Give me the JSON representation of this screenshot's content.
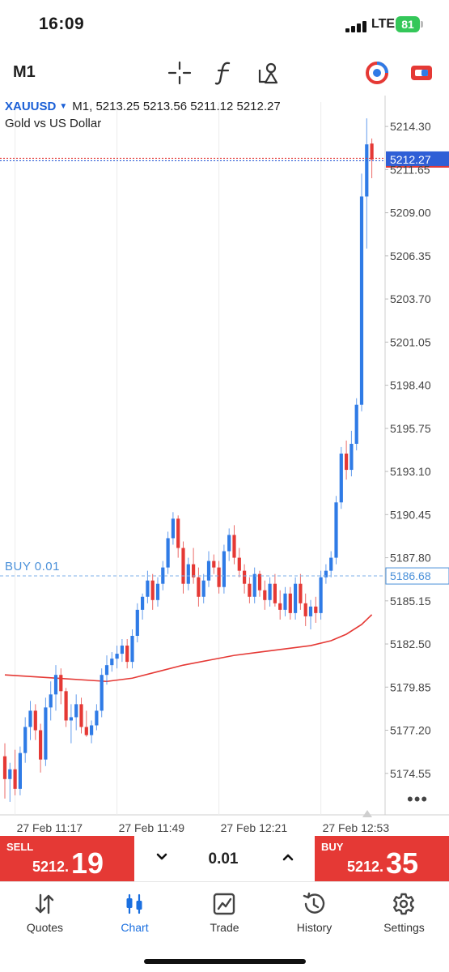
{
  "status_bar": {
    "time": "16:09",
    "network": "LTE",
    "battery": "81"
  },
  "toolbar": {
    "timeframe": "M1",
    "icons": [
      "crosshair-icon",
      "indicators-f-icon",
      "objects-icon",
      "trading-account-icon",
      "one-click-trading-icon"
    ]
  },
  "chart_header": {
    "symbol": "XAUUSD",
    "timeframe": "M1",
    "ohlc": "5213.25 5213.56 5211.12 5212.27",
    "description": "Gold vs US Dollar"
  },
  "chart_data": {
    "type": "candlestick",
    "y_ticks": [
      "5214.30",
      "5211.65",
      "5209.00",
      "5206.35",
      "5203.70",
      "5201.05",
      "5198.40",
      "5195.75",
      "5193.10",
      "5190.45",
      "5187.80",
      "5185.15",
      "5182.50",
      "5179.85",
      "5177.20",
      "5174.55"
    ],
    "ylim": [
      5172.0,
      5215.8
    ],
    "x_ticks": [
      "27 Feb 11:17",
      "27 Feb 11:49",
      "27 Feb 12:21",
      "27 Feb 12:53"
    ],
    "current_bid": "5212.27",
    "order_line": {
      "label": "BUY 0.01",
      "price": "5186.68"
    },
    "up_color": "#2f7be6",
    "down_color": "#e53935",
    "moving_average_color": "#e53935",
    "candles": [
      {
        "o": 5175.6,
        "h": 5176.4,
        "l": 5173.0,
        "c": 5174.2
      },
      {
        "o": 5174.2,
        "h": 5175.2,
        "l": 5172.8,
        "c": 5174.8
      },
      {
        "o": 5174.8,
        "h": 5176.0,
        "l": 5173.2,
        "c": 5173.6
      },
      {
        "o": 5173.6,
        "h": 5176.2,
        "l": 5173.2,
        "c": 5175.8
      },
      {
        "o": 5175.8,
        "h": 5178.0,
        "l": 5175.2,
        "c": 5177.4
      },
      {
        "o": 5177.4,
        "h": 5179.0,
        "l": 5176.6,
        "c": 5178.4
      },
      {
        "o": 5178.4,
        "h": 5178.8,
        "l": 5176.6,
        "c": 5177.2
      },
      {
        "o": 5177.2,
        "h": 5177.6,
        "l": 5174.6,
        "c": 5175.4
      },
      {
        "o": 5175.4,
        "h": 5179.2,
        "l": 5175.0,
        "c": 5178.6
      },
      {
        "o": 5178.6,
        "h": 5180.2,
        "l": 5177.8,
        "c": 5179.4
      },
      {
        "o": 5179.4,
        "h": 5181.2,
        "l": 5178.4,
        "c": 5180.6
      },
      {
        "o": 5180.6,
        "h": 5181.0,
        "l": 5178.8,
        "c": 5179.6
      },
      {
        "o": 5179.6,
        "h": 5179.8,
        "l": 5177.4,
        "c": 5177.8
      },
      {
        "o": 5177.8,
        "h": 5178.8,
        "l": 5176.4,
        "c": 5178.0
      },
      {
        "o": 5178.0,
        "h": 5179.4,
        "l": 5177.2,
        "c": 5178.8
      },
      {
        "o": 5178.8,
        "h": 5179.2,
        "l": 5177.0,
        "c": 5177.4
      },
      {
        "o": 5177.4,
        "h": 5178.4,
        "l": 5176.8,
        "c": 5176.9
      },
      {
        "o": 5176.9,
        "h": 5177.8,
        "l": 5176.4,
        "c": 5177.5
      },
      {
        "o": 5177.5,
        "h": 5178.8,
        "l": 5177.2,
        "c": 5178.4
      },
      {
        "o": 5178.4,
        "h": 5181.0,
        "l": 5178.0,
        "c": 5180.6
      },
      {
        "o": 5180.6,
        "h": 5181.8,
        "l": 5180.0,
        "c": 5181.2
      },
      {
        "o": 5181.2,
        "h": 5182.0,
        "l": 5180.8,
        "c": 5181.6
      },
      {
        "o": 5181.6,
        "h": 5182.4,
        "l": 5181.0,
        "c": 5181.9
      },
      {
        "o": 5181.9,
        "h": 5182.8,
        "l": 5181.4,
        "c": 5182.4
      },
      {
        "o": 5182.4,
        "h": 5182.8,
        "l": 5181.0,
        "c": 5181.4
      },
      {
        "o": 5181.4,
        "h": 5183.4,
        "l": 5181.0,
        "c": 5183.0
      },
      {
        "o": 5183.0,
        "h": 5185.0,
        "l": 5182.6,
        "c": 5184.6
      },
      {
        "o": 5184.6,
        "h": 5185.6,
        "l": 5184.0,
        "c": 5185.4
      },
      {
        "o": 5185.4,
        "h": 5187.0,
        "l": 5185.0,
        "c": 5186.4
      },
      {
        "o": 5186.4,
        "h": 5186.8,
        "l": 5184.6,
        "c": 5185.2
      },
      {
        "o": 5185.2,
        "h": 5186.6,
        "l": 5184.8,
        "c": 5186.2
      },
      {
        "o": 5186.2,
        "h": 5187.6,
        "l": 5185.8,
        "c": 5187.2
      },
      {
        "o": 5187.2,
        "h": 5189.4,
        "l": 5186.8,
        "c": 5189.0
      },
      {
        "o": 5189.0,
        "h": 5190.6,
        "l": 5188.6,
        "c": 5190.2
      },
      {
        "o": 5190.2,
        "h": 5190.4,
        "l": 5187.8,
        "c": 5188.4
      },
      {
        "o": 5188.4,
        "h": 5188.8,
        "l": 5185.6,
        "c": 5186.2
      },
      {
        "o": 5186.2,
        "h": 5187.8,
        "l": 5185.8,
        "c": 5187.4
      },
      {
        "o": 5187.4,
        "h": 5188.4,
        "l": 5186.2,
        "c": 5186.6
      },
      {
        "o": 5186.6,
        "h": 5187.2,
        "l": 5184.8,
        "c": 5185.4
      },
      {
        "o": 5185.4,
        "h": 5186.8,
        "l": 5185.0,
        "c": 5186.4
      },
      {
        "o": 5186.4,
        "h": 5188.2,
        "l": 5186.0,
        "c": 5187.6
      },
      {
        "o": 5187.6,
        "h": 5188.0,
        "l": 5186.8,
        "c": 5187.2
      },
      {
        "o": 5187.2,
        "h": 5187.6,
        "l": 5185.6,
        "c": 5186.0
      },
      {
        "o": 5186.0,
        "h": 5188.6,
        "l": 5185.6,
        "c": 5188.2
      },
      {
        "o": 5188.2,
        "h": 5189.6,
        "l": 5187.6,
        "c": 5189.2
      },
      {
        "o": 5189.2,
        "h": 5189.8,
        "l": 5187.4,
        "c": 5187.8
      },
      {
        "o": 5187.8,
        "h": 5188.4,
        "l": 5186.6,
        "c": 5187.0
      },
      {
        "o": 5187.0,
        "h": 5187.4,
        "l": 5185.6,
        "c": 5186.2
      },
      {
        "o": 5186.2,
        "h": 5186.6,
        "l": 5185.0,
        "c": 5185.4
      },
      {
        "o": 5185.4,
        "h": 5187.2,
        "l": 5185.0,
        "c": 5186.8
      },
      {
        "o": 5186.8,
        "h": 5187.0,
        "l": 5185.4,
        "c": 5185.8
      },
      {
        "o": 5185.8,
        "h": 5186.4,
        "l": 5184.6,
        "c": 5185.2
      },
      {
        "o": 5185.2,
        "h": 5186.6,
        "l": 5184.8,
        "c": 5186.2
      },
      {
        "o": 5186.2,
        "h": 5186.8,
        "l": 5184.8,
        "c": 5185.0
      },
      {
        "o": 5185.0,
        "h": 5185.8,
        "l": 5184.0,
        "c": 5184.6
      },
      {
        "o": 5184.6,
        "h": 5186.0,
        "l": 5184.2,
        "c": 5185.6
      },
      {
        "o": 5185.6,
        "h": 5186.0,
        "l": 5184.0,
        "c": 5184.4
      },
      {
        "o": 5184.4,
        "h": 5186.6,
        "l": 5184.0,
        "c": 5186.2
      },
      {
        "o": 5186.2,
        "h": 5186.8,
        "l": 5184.6,
        "c": 5185.0
      },
      {
        "o": 5185.0,
        "h": 5185.6,
        "l": 5183.6,
        "c": 5184.2
      },
      {
        "o": 5184.2,
        "h": 5185.2,
        "l": 5183.4,
        "c": 5184.8
      },
      {
        "o": 5184.8,
        "h": 5185.4,
        "l": 5183.8,
        "c": 5184.4
      },
      {
        "o": 5184.4,
        "h": 5187.0,
        "l": 5184.0,
        "c": 5186.6
      },
      {
        "o": 5186.6,
        "h": 5187.4,
        "l": 5186.2,
        "c": 5187.0
      },
      {
        "o": 5187.0,
        "h": 5188.2,
        "l": 5186.6,
        "c": 5187.8
      },
      {
        "o": 5187.8,
        "h": 5191.6,
        "l": 5187.4,
        "c": 5191.2
      },
      {
        "o": 5191.2,
        "h": 5194.6,
        "l": 5190.8,
        "c": 5194.2
      },
      {
        "o": 5194.2,
        "h": 5195.0,
        "l": 5192.6,
        "c": 5193.2
      },
      {
        "o": 5193.2,
        "h": 5195.6,
        "l": 5192.8,
        "c": 5194.8
      },
      {
        "o": 5194.8,
        "h": 5197.6,
        "l": 5194.4,
        "c": 5197.2
      },
      {
        "o": 5197.2,
        "h": 5211.4,
        "l": 5196.8,
        "c": 5210.0
      },
      {
        "o": 5210.0,
        "h": 5214.8,
        "l": 5206.8,
        "c": 5213.2
      },
      {
        "o": 5213.25,
        "h": 5213.56,
        "l": 5211.12,
        "c": 5212.27
      }
    ],
    "moving_average": [
      [
        0,
        5180.6
      ],
      [
        10,
        5180.4
      ],
      [
        20,
        5180.2
      ],
      [
        25,
        5180.4
      ],
      [
        30,
        5180.8
      ],
      [
        35,
        5181.2
      ],
      [
        40,
        5181.5
      ],
      [
        45,
        5181.8
      ],
      [
        50,
        5182.0
      ],
      [
        55,
        5182.2
      ],
      [
        60,
        5182.4
      ],
      [
        64,
        5182.7
      ],
      [
        67,
        5183.1
      ],
      [
        70,
        5183.7
      ],
      [
        72,
        5184.3
      ]
    ]
  },
  "trade_panel": {
    "sell_label": "SELL",
    "sell_price_main": "5212.",
    "sell_price_pips": "19",
    "buy_label": "BUY",
    "buy_price_main": "5212.",
    "buy_price_pips": "35",
    "lot": "0.01"
  },
  "bottom_nav": {
    "items": [
      {
        "label": "Quotes",
        "icon": "quotes-arrows-icon"
      },
      {
        "label": "Chart",
        "icon": "chart-candles-icon"
      },
      {
        "label": "Trade",
        "icon": "trade-chart-icon"
      },
      {
        "label": "History",
        "icon": "history-clock-icon"
      },
      {
        "label": "Settings",
        "icon": "settings-gear-icon"
      }
    ],
    "active": "Chart",
    "active_color": "#1a6fe0"
  }
}
